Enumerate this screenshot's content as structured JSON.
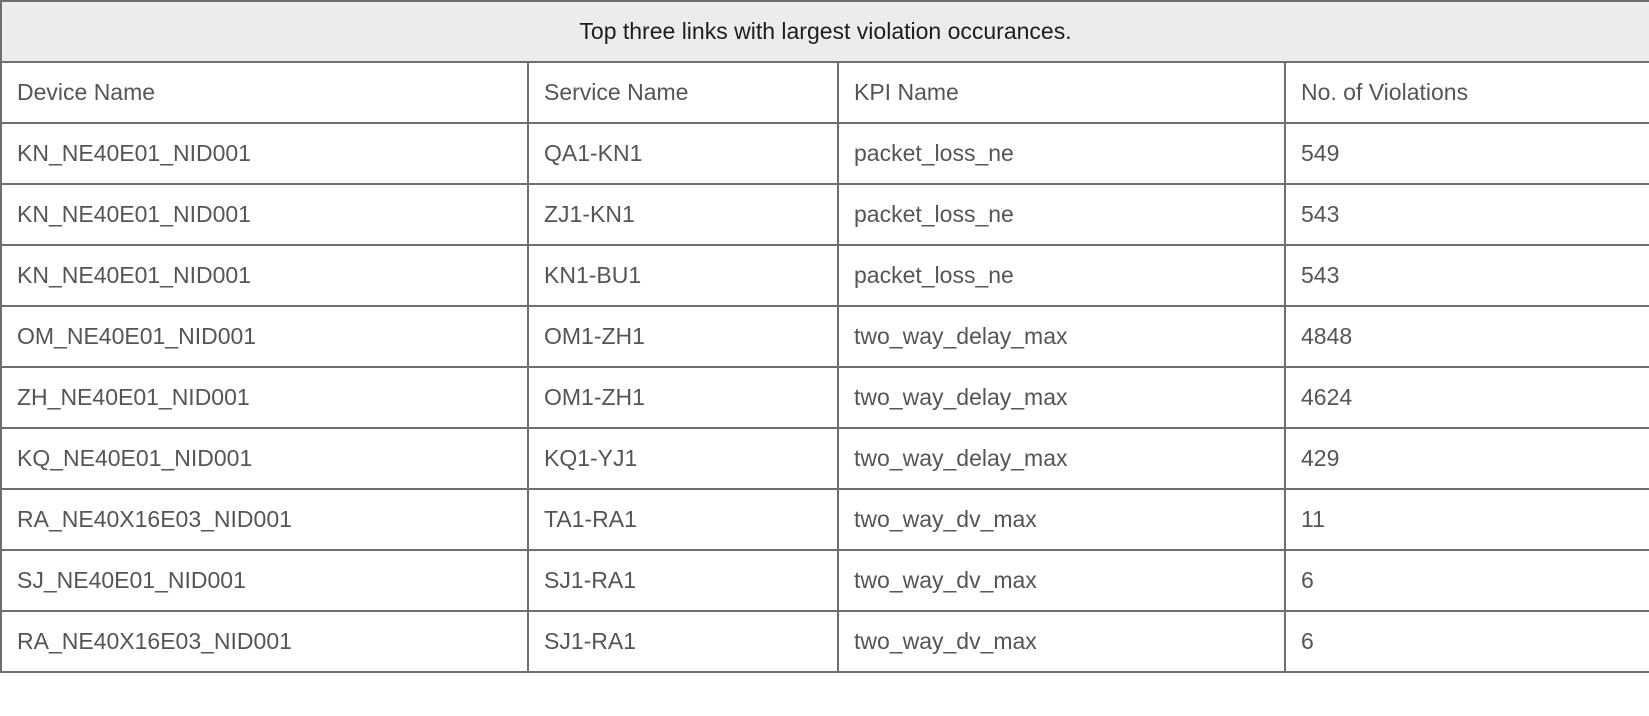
{
  "table": {
    "caption": "Top three links with largest violation occurances.",
    "columns": [
      "Device Name",
      "Service Name",
      "KPI Name",
      "No. of Violations"
    ],
    "rows": [
      [
        "KN_NE40E01_NID001",
        "QA1-KN1",
        "packet_loss_ne",
        "549"
      ],
      [
        "KN_NE40E01_NID001",
        "ZJ1-KN1",
        "packet_loss_ne",
        "543"
      ],
      [
        "KN_NE40E01_NID001",
        "KN1-BU1",
        "packet_loss_ne",
        "543"
      ],
      [
        "OM_NE40E01_NID001",
        "OM1-ZH1",
        "two_way_delay_max",
        "4848"
      ],
      [
        "ZH_NE40E01_NID001",
        "OM1-ZH1",
        "two_way_delay_max",
        "4624"
      ],
      [
        "KQ_NE40E01_NID001",
        "KQ1-YJ1",
        "two_way_delay_max",
        "429"
      ],
      [
        "RA_NE40X16E03_NID001",
        "TA1-RA1",
        "two_way_dv_max",
        "11"
      ],
      [
        "SJ_NE40E01_NID001",
        "SJ1-RA1",
        "two_way_dv_max",
        "6"
      ],
      [
        "RA_NE40X16E03_NID001",
        "SJ1-RA1",
        "two_way_dv_max",
        "6"
      ]
    ]
  }
}
